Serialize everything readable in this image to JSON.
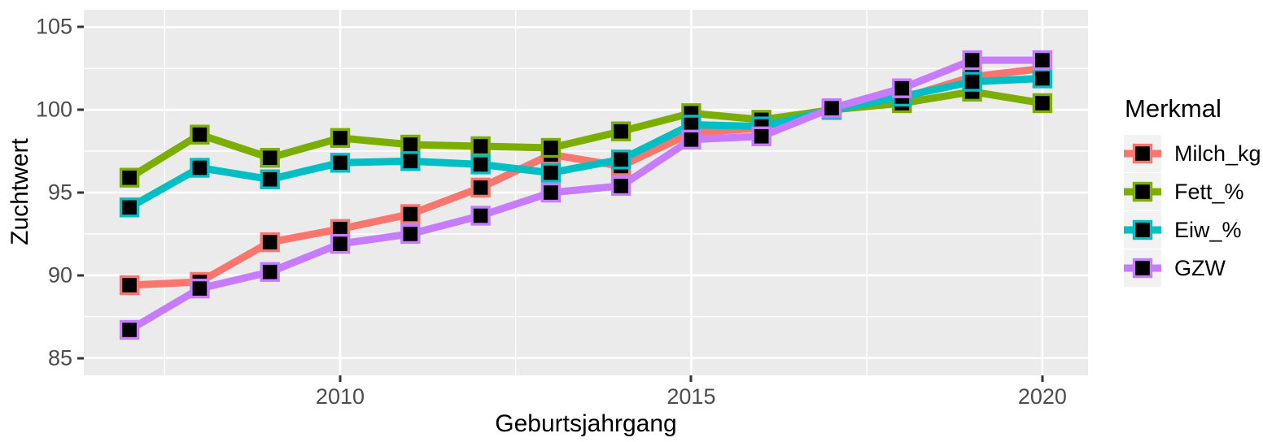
{
  "chart_data": {
    "type": "line",
    "title": "",
    "xlabel": "Geburtsjahrgang",
    "ylabel": "Zuchtwert",
    "legend_title": "Merkmal",
    "legend_position": "right",
    "grid": true,
    "panel_bg": "#EBEBEB",
    "grid_color": "#FFFFFF",
    "axis_text_color": "#4D4D4D",
    "marker": "black-filled-square-with-colored-outline",
    "x": [
      2007,
      2008,
      2009,
      2010,
      2011,
      2012,
      2013,
      2014,
      2015,
      2016,
      2017,
      2018,
      2019,
      2020
    ],
    "series": [
      {
        "name": "Milch_kg",
        "color": "#F8766D",
        "values": [
          89.4,
          89.6,
          92.0,
          92.8,
          93.7,
          95.3,
          97.3,
          96.6,
          98.6,
          98.9,
          100.0,
          100.7,
          102.0,
          102.5
        ]
      },
      {
        "name": "Fett_%",
        "color": "#7CAE00",
        "values": [
          95.9,
          98.5,
          97.1,
          98.3,
          97.9,
          97.8,
          97.7,
          98.7,
          99.8,
          99.4,
          100.0,
          100.4,
          101.1,
          100.4
        ]
      },
      {
        "name": "Eiw_%",
        "color": "#00BFC4",
        "values": [
          94.1,
          96.5,
          95.8,
          96.8,
          96.9,
          96.7,
          96.2,
          97.0,
          99.1,
          99.0,
          100.0,
          100.8,
          101.7,
          101.9
        ]
      },
      {
        "name": "GZW",
        "color": "#C77CFF",
        "values": [
          86.7,
          89.2,
          90.2,
          91.9,
          92.5,
          93.6,
          95.0,
          95.4,
          98.2,
          98.4,
          100.1,
          101.3,
          103.0,
          103.0
        ]
      }
    ],
    "xlim": [
      2006.35,
      2020.65
    ],
    "ylim": [
      83.95,
      106.05
    ],
    "x_major_ticks": [
      2010,
      2015,
      2020
    ],
    "x_minor_ticks": [
      2007.5,
      2012.5,
      2017.5
    ],
    "y_major_ticks": [
      85,
      90,
      95,
      100,
      105
    ],
    "y_minor_ticks": [
      87.5,
      92.5,
      97.5,
      102.5
    ]
  }
}
